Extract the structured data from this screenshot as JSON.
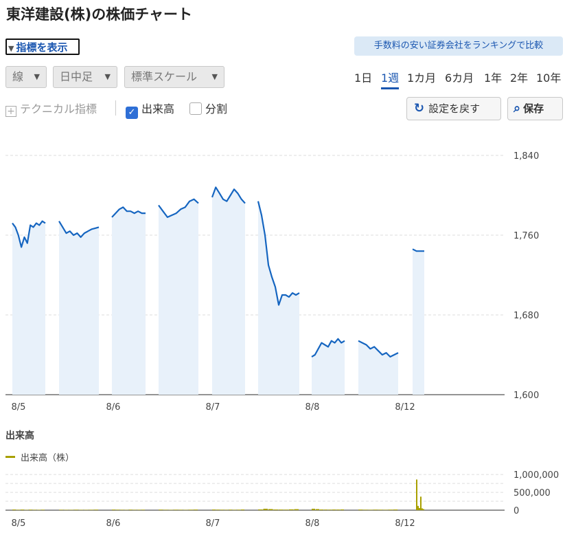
{
  "page": {
    "title": "東洋建設(株)の株価チャート",
    "toggle_label": "指標を表示",
    "promo_label": "手数料の安い証券会社をランキングで比較"
  },
  "controls": {
    "chart_type": "線",
    "period_type": "日中足",
    "scale": "標準スケール",
    "ranges": [
      "1日",
      "1週",
      "1カ月",
      "6カ月",
      "1年",
      "2年",
      "10年"
    ],
    "active_range": "1週",
    "technical_label": "テクニカル指標",
    "volume_label": "出来高",
    "volume_checked": true,
    "split_label": "分割",
    "split_checked": false,
    "reset_label": "設定を戻す",
    "save_label": "保存"
  },
  "colors": {
    "price_line": "#1565c0",
    "price_fill": "#e8f1fa",
    "volume": "#a8a000",
    "accent": "#1a56b0"
  },
  "chart_data": [
    {
      "type": "area",
      "y_ticks": [
        "1,840",
        "1,760",
        "1,680",
        "1,600"
      ],
      "ylim": [
        1600,
        1840
      ],
      "x_labels": [
        "8/5",
        "8/6",
        "8/7",
        "8/8",
        "8/12"
      ],
      "grid": true,
      "segments": [
        {
          "day": "8/5",
          "session": "am",
          "values": [
            1772,
            1768,
            1760,
            1748,
            1758,
            1752,
            1770,
            1768,
            1772,
            1770,
            1774,
            1772
          ]
        },
        {
          "day": "8/5",
          "session": "pm",
          "values": [
            1774,
            1768,
            1762,
            1764,
            1760,
            1762,
            1758,
            1762,
            1764,
            1766,
            1767,
            1768
          ]
        },
        {
          "day": "8/6",
          "session": "am",
          "values": [
            1778,
            1782,
            1786,
            1788,
            1784,
            1784,
            1782,
            1784,
            1782,
            1782
          ]
        },
        {
          "day": "8/6",
          "session": "pm",
          "values": [
            1790,
            1784,
            1778,
            1780,
            1782,
            1786,
            1788,
            1794,
            1796,
            1792
          ]
        },
        {
          "day": "8/7",
          "session": "am",
          "values": [
            1798,
            1808,
            1802,
            1796,
            1794,
            1800,
            1806,
            1802,
            1796,
            1792
          ]
        },
        {
          "day": "8/7",
          "session": "pm",
          "values": [
            1794,
            1780,
            1760,
            1730,
            1718,
            1708,
            1690,
            1700,
            1700,
            1698,
            1702,
            1700,
            1702
          ]
        },
        {
          "day": "8/8",
          "session": "am",
          "values": [
            1638,
            1640,
            1646,
            1652,
            1650,
            1648,
            1654,
            1652,
            1656,
            1652,
            1654
          ]
        },
        {
          "day": "8/8",
          "session": "pm",
          "values": [
            1654,
            1652,
            1650,
            1646,
            1648,
            1644,
            1640,
            1642,
            1638,
            1640,
            1642
          ]
        },
        {
          "day": "8/12",
          "session": "am",
          "values": [
            1746,
            1744,
            1744,
            1744
          ]
        }
      ]
    },
    {
      "type": "bar",
      "title": "出来高",
      "series_name": "出来高（株）",
      "y_ticks": [
        "1,000,000",
        "500,000",
        "0"
      ],
      "ylim": [
        0,
        1100000
      ],
      "x_labels": [
        "8/5",
        "8/6",
        "8/7",
        "8/8",
        "8/12"
      ],
      "grid": true,
      "segments": [
        {
          "day": "8/5",
          "values": [
            20000,
            12000,
            18000,
            10000,
            15000,
            12000,
            9000,
            14000
          ]
        },
        {
          "day": "8/5",
          "values": [
            12000,
            10000,
            9000,
            14000,
            10000,
            9000,
            12000,
            16000
          ]
        },
        {
          "day": "8/6",
          "values": [
            18000,
            14000,
            12000,
            10000,
            16000,
            12000,
            11000,
            14000
          ]
        },
        {
          "day": "8/6",
          "values": [
            16000,
            12000,
            10000,
            14000,
            12000,
            10000,
            13000,
            18000
          ]
        },
        {
          "day": "8/7",
          "values": [
            20000,
            16000,
            14000,
            12000,
            16000,
            12000,
            14000,
            20000
          ]
        },
        {
          "day": "8/7",
          "values": [
            22000,
            40000,
            30000,
            20000,
            18000,
            16000,
            24000,
            28000
          ]
        },
        {
          "day": "8/8",
          "values": [
            40000,
            30000,
            20000,
            18000,
            16000,
            20000,
            18000,
            22000
          ]
        },
        {
          "day": "8/8",
          "values": [
            18000,
            14000,
            12000,
            16000,
            14000,
            12000,
            16000,
            20000
          ]
        },
        {
          "day": "8/12",
          "values": [
            860000,
            120000,
            60000,
            380000,
            50000,
            30000
          ]
        }
      ]
    }
  ]
}
